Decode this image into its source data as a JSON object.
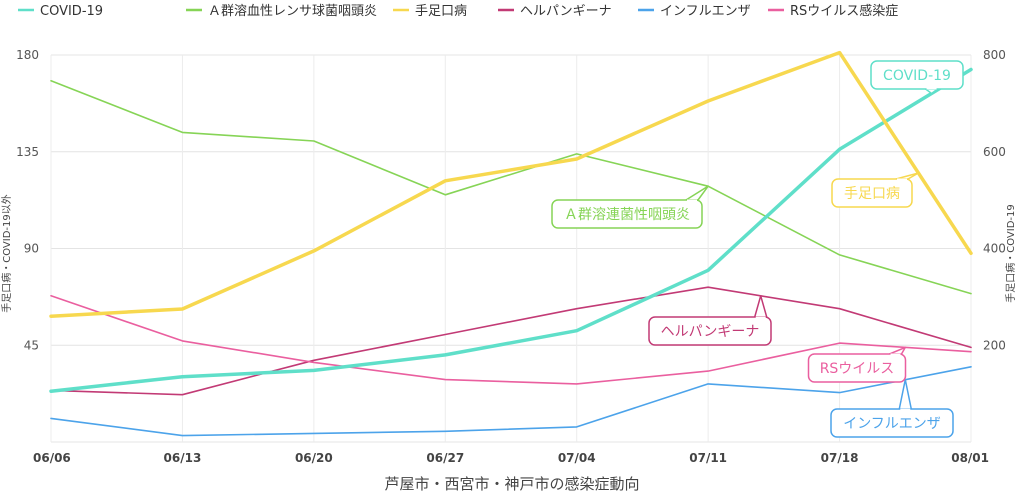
{
  "chart_data": {
    "type": "line",
    "title": "芦屋市・西宮市・神戸市の感染症動向",
    "categories": [
      "06/06",
      "06/13",
      "06/20",
      "06/27",
      "07/04",
      "07/11",
      "07/18",
      "08/01"
    ],
    "ylabel_left": "手足口病・COVID-19以外",
    "ylabel_right": "手足口病・COVID-19",
    "ylim_left": [
      0,
      180
    ],
    "ylim_right": [
      0,
      800
    ],
    "yticks_left": [
      "180",
      "135",
      "90",
      "45"
    ],
    "yticks_right": [
      "800",
      "600",
      "400",
      "200"
    ],
    "legend_position": "top",
    "grid": true,
    "series": [
      {
        "name": "COVID-19",
        "axis": "right",
        "color": "#5fdfc9",
        "width": 3.5,
        "values": [
          105,
          135,
          148,
          180,
          230,
          355,
          605,
          770
        ],
        "callout": "COVID-19"
      },
      {
        "name": "Ａ群溶血性レンサ球菌咽頭炎",
        "axis": "left",
        "color": "#86d456",
        "width": 1.6,
        "values": [
          168,
          144,
          140,
          115,
          134,
          119,
          87,
          69
        ],
        "callout": "Ａ群溶連菌性咽頭炎"
      },
      {
        "name": "手足口病",
        "axis": "right",
        "color": "#f7d84f",
        "width": 3.5,
        "values": [
          260,
          275,
          395,
          540,
          585,
          705,
          805,
          390
        ],
        "callout": "手足口病"
      },
      {
        "name": "ヘルパンギーナ",
        "axis": "left",
        "color": "#c23a75",
        "width": 1.6,
        "values": [
          24,
          22,
          38,
          50,
          62,
          72,
          62,
          44
        ],
        "callout": "ヘルパンギーナ"
      },
      {
        "name": "インフルエンザ",
        "axis": "left",
        "color": "#4ca3ea",
        "width": 1.6,
        "values": [
          11,
          3,
          4,
          5,
          7,
          27,
          23,
          35
        ],
        "callout": "インフルエンザ"
      },
      {
        "name": "RSウイルス感染症",
        "axis": "left",
        "color": "#ea5f9f",
        "width": 1.6,
        "values": [
          68,
          47,
          37,
          29,
          27,
          33,
          46,
          42
        ],
        "callout": "RSウイルス"
      }
    ]
  }
}
